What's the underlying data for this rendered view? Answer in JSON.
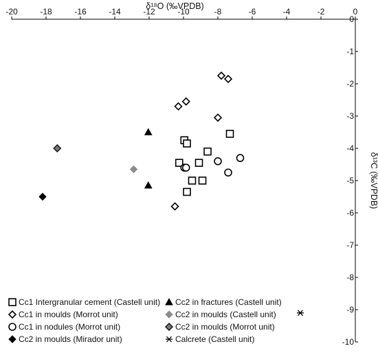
{
  "chart_data": {
    "type": "scatter",
    "title": "",
    "xlabel": "δ¹⁸O (‰VPDB)",
    "ylabel": "δ¹³C (‰VPDB)",
    "x_axis_position": "top",
    "y_axis_position": "right",
    "xlim": [
      -20,
      0
    ],
    "ylim": [
      -10,
      0
    ],
    "x_ticks": [
      -20,
      -18,
      -16,
      -14,
      -12,
      -10,
      -8,
      -6,
      -4,
      -2,
      0
    ],
    "y_ticks": [
      0,
      -1,
      -2,
      -3,
      -4,
      -5,
      -6,
      -7,
      -8,
      -9,
      -10
    ],
    "grid": false,
    "legend_position": "bottom-left",
    "series": [
      {
        "name": "Cc1 Intergranular cement (Castell unit)",
        "marker": "open-square",
        "color": "#000000",
        "points": [
          [
            -7.3,
            -3.55
          ],
          [
            -9.95,
            -3.75
          ],
          [
            -9.8,
            -3.85
          ],
          [
            -8.6,
            -4.1
          ],
          [
            -10.25,
            -4.45
          ],
          [
            -9.1,
            -4.45
          ],
          [
            -9.5,
            -5.0
          ],
          [
            -8.9,
            -5.0
          ],
          [
            -9.8,
            -5.35
          ]
        ]
      },
      {
        "name": "Cc1 in moulds (Morrot unit)",
        "marker": "open-diamond",
        "color": "#000000",
        "points": [
          [
            -7.8,
            -1.75
          ],
          [
            -7.4,
            -1.85
          ],
          [
            -9.85,
            -2.55
          ],
          [
            -10.3,
            -2.7
          ],
          [
            -8.0,
            -3.05
          ],
          [
            -10.5,
            -5.8
          ]
        ]
      },
      {
        "name": "Cc1 in nodules (Morrot unit)",
        "marker": "open-circle",
        "color": "#000000",
        "points": [
          [
            -6.7,
            -4.3
          ],
          [
            -8.0,
            -4.4
          ],
          [
            -9.95,
            -4.6
          ],
          [
            -9.85,
            -4.6
          ],
          [
            -7.4,
            -4.75
          ]
        ]
      },
      {
        "name": "Cc2 in moulds (Mirador unit)",
        "marker": "filled-diamond",
        "color": "#000000",
        "points": [
          [
            -18.2,
            -5.5
          ]
        ]
      },
      {
        "name": "Cc2 in fractures (Castell unit)",
        "marker": "filled-triangle",
        "color": "#000000",
        "points": [
          [
            -12.05,
            -3.5
          ],
          [
            -12.05,
            -5.15
          ]
        ]
      },
      {
        "name": "Cc2 in moulds (Castell unit)",
        "marker": "gray-diamond",
        "color": "#8c8c8c",
        "points": [
          [
            -12.9,
            -4.65
          ]
        ]
      },
      {
        "name": "Cc2 in moulds (Morrot unit)",
        "marker": "hatched-diamond",
        "color": "#7a7a7a",
        "points": [
          [
            -17.35,
            -4.0
          ]
        ]
      },
      {
        "name": "Calcrete (Castell unit)",
        "marker": "asterisk",
        "color": "#000000",
        "points": [
          [
            -3.2,
            -9.1
          ]
        ]
      }
    ]
  }
}
